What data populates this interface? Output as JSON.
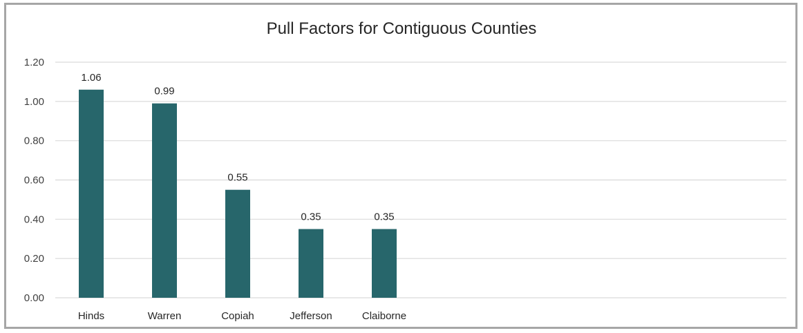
{
  "chart_data": {
    "type": "bar",
    "title": "Pull Factors for Contiguous Counties",
    "categories": [
      "Hinds",
      "Warren",
      "Copiah",
      "Jefferson",
      "Claiborne"
    ],
    "values": [
      1.06,
      0.99,
      0.55,
      0.35,
      0.35
    ],
    "data_labels": [
      "1.06",
      "0.99",
      "0.55",
      "0.35",
      "0.35"
    ],
    "xlabel": "",
    "ylabel": "",
    "ylim": [
      0,
      1.2
    ],
    "yticks": [
      0,
      0.2,
      0.4,
      0.6,
      0.8,
      1.0,
      1.2
    ],
    "ytick_labels": [
      "0.00",
      "0.20",
      "0.40",
      "0.60",
      "0.80",
      "1.00",
      "1.20"
    ],
    "grid": true,
    "legend": "none",
    "bar_color": "#27666b",
    "grid_color": "#d9d9d9"
  }
}
